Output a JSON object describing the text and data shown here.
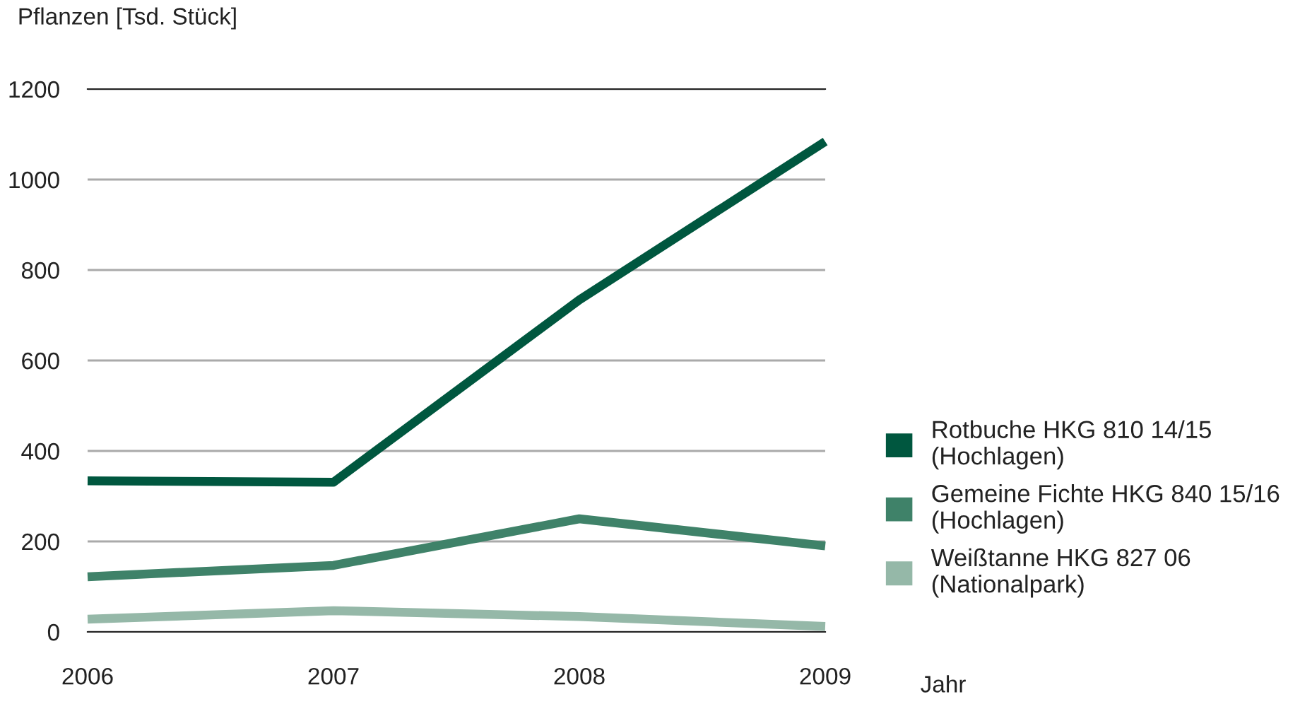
{
  "chart_data": {
    "type": "line",
    "ylabel": "Pflanzen [Tsd. Stück]",
    "xlabel": "Jahr",
    "x": [
      2006,
      2007,
      2008,
      2009
    ],
    "xlim": [
      2006,
      2009
    ],
    "xticks": [
      2006,
      2007,
      2008,
      2009
    ],
    "ylim": [
      0,
      1200
    ],
    "yticks": [
      0,
      200,
      400,
      600,
      800,
      1000,
      1200
    ],
    "grid": "y",
    "legend": "right",
    "marker": "none",
    "line_style": "solid",
    "series": [
      {
        "name": "Rotbuche HKG 810 14/15\n(Hochlagen)",
        "color": "#00573f",
        "values": [
          334,
          331,
          734,
          1084
        ]
      },
      {
        "name": "Gemeine Fichte HKG 840 15/16\n(Hochlagen)",
        "color": "#3f8269",
        "values": [
          122,
          147,
          250,
          190
        ]
      },
      {
        "name": "Weißtanne HKG 827 06\n(Nationalpark)",
        "color": "#95b8a8",
        "values": [
          28,
          47,
          34,
          12
        ]
      }
    ]
  }
}
